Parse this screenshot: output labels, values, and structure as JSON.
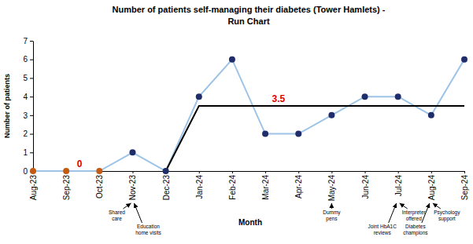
{
  "chart_data": {
    "type": "line",
    "title": "Number of patients self-managing their diabetes (Tower Hamlets) -\nRun Chart",
    "x_label": "Month",
    "y_label": "Number of patients",
    "categories": [
      "Aug-23",
      "Sep-23",
      "Oct-23",
      "Nov-23",
      "Dec-23",
      "Jan-24",
      "Feb-24",
      "Mar-24",
      "Apr-24",
      "May-24",
      "Jun-24",
      "Jul-24",
      "Aug-24",
      "Sep-24"
    ],
    "series": [
      {
        "color": "#9dc3e6",
        "marker": "circle",
        "line_style": "solid",
        "colors": [
          "#c55a11",
          "#c55a11",
          "#c55a11",
          "#1f2d6b",
          "#1f2d6b",
          "#1f2d6b",
          "#1f2d6b",
          "#1f2d6b",
          "#1f2d6b",
          "#1f2d6b",
          "#1f2d6b",
          "#1f2d6b",
          "#1f2d6b",
          "#1f2d6b"
        ],
        "values": [
          0,
          0,
          0,
          1,
          0,
          4,
          6,
          2,
          2,
          3,
          4,
          4,
          3,
          6
        ]
      },
      {
        "color": "#000000",
        "line_style": "solid",
        "values": [
          null,
          null,
          null,
          null,
          0,
          3.5,
          3.5,
          3.5,
          3.5,
          3.5,
          3.5,
          3.5,
          3.5,
          3.5
        ]
      }
    ],
    "ylim": [
      0,
      7
    ],
    "yticks": [
      0,
      1,
      2,
      3,
      4,
      5,
      6,
      7
    ],
    "grid": false,
    "annotations": [
      {
        "text": "0",
        "x": "Sep-23",
        "y": 0
      },
      {
        "text": "3.5",
        "x": "Mar-24",
        "y": 3.5
      }
    ],
    "events": [
      {
        "x": "Nov-23",
        "text": "Shared\ncare"
      },
      {
        "x": "Nov-23",
        "text": "Education\nhome visits"
      },
      {
        "x": "May-24",
        "text": "Dummy\npens"
      },
      {
        "x": "Jul-24",
        "text": "Joint HbA1C\nreviews"
      },
      {
        "x": "Jul-24",
        "text": "Interpreter\noffered"
      },
      {
        "x": "Aug-24",
        "text": "Diabetes\nchampions"
      },
      {
        "x": "Aug-24",
        "text": "Psychology\nsupport"
      }
    ]
  }
}
